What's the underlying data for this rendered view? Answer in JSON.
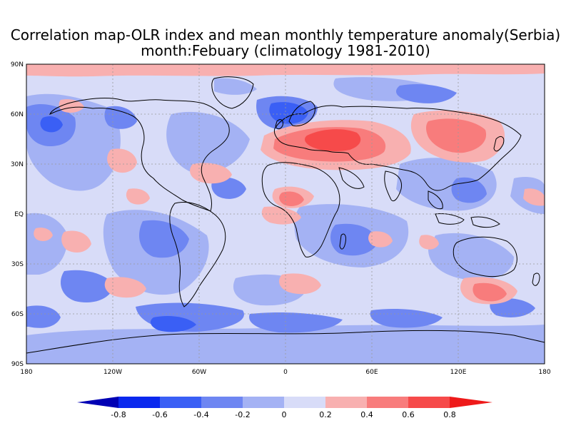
{
  "title_line1": "Correlation map-OLR index and mean monthly temperature anomaly(Serbia)",
  "title_line2": "month:Febuary (climatology 1981-2010)",
  "lat_labels": [
    "90N",
    "60N",
    "30N",
    "EQ",
    "30S",
    "60S",
    "90S"
  ],
  "lon_labels": [
    "180",
    "120W",
    "60W",
    "0",
    "60E",
    "120E",
    "180"
  ],
  "colorbar_labels": [
    "-0.8",
    "-0.6",
    "-0.4",
    "-0.2",
    "0",
    "0.2",
    "0.4",
    "0.6",
    "0.8"
  ],
  "colorbar_colors": [
    "#0000b4",
    "#0a28ee",
    "#3a5ff5",
    "#6e86f2",
    "#a4b2f4",
    "#d8dcf8",
    "#f8b0b0",
    "#f87c7c",
    "#f64a4a",
    "#ee1a1a"
  ],
  "colors": {
    "neutral": "#d8dcf8",
    "weak_negative": "#a4b2f4",
    "moderate_negative": "#6e86f2",
    "strong_negative": "#3a5ff5",
    "weak_positive": "#f8b0b0",
    "moderate_positive": "#f87c7c",
    "strong_positive": "#f64a4a"
  }
}
